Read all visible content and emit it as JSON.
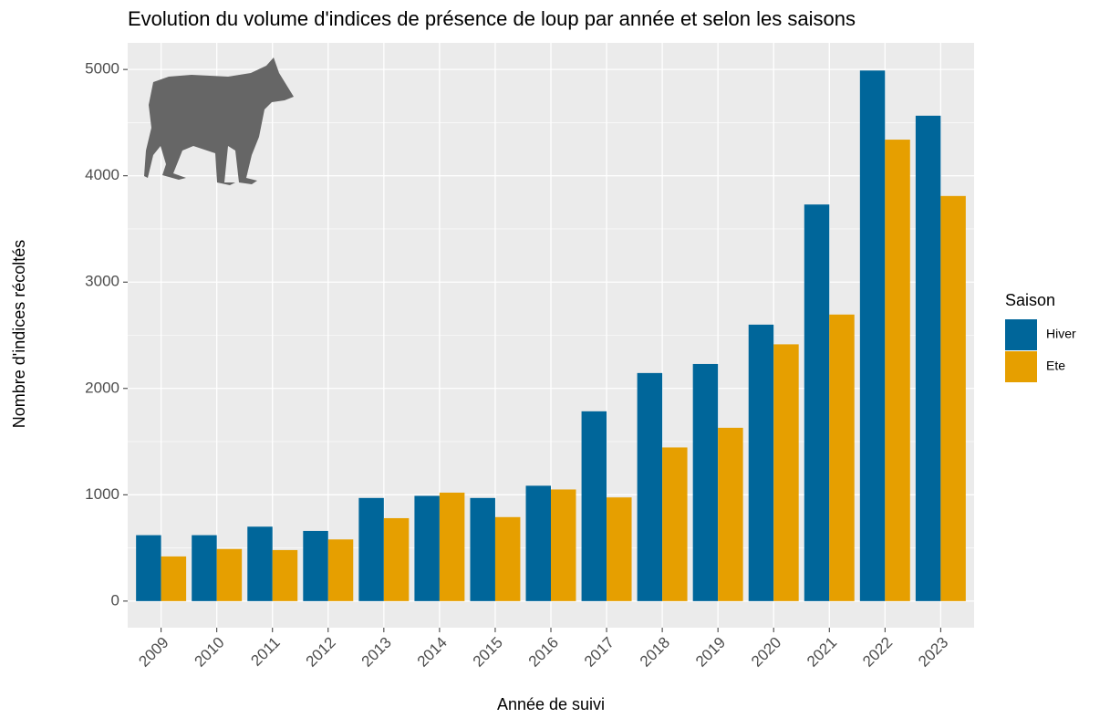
{
  "chart_data": {
    "type": "bar",
    "title": "Evolution du volume d'indices de présence de loup par année et selon les saisons",
    "x_label": "Année de suivi",
    "y_label": "Nombre d'indices récoltés",
    "categories": [
      "2009",
      "2010",
      "2011",
      "2012",
      "2013",
      "2014",
      "2015",
      "2016",
      "2017",
      "2018",
      "2019",
      "2020",
      "2021",
      "2022",
      "2023"
    ],
    "series": [
      {
        "name": "Hiver",
        "color": "#00669a",
        "values": [
          620,
          620,
          700,
          660,
          970,
          990,
          970,
          1085,
          1785,
          2145,
          2230,
          2600,
          3730,
          4990,
          4565
        ]
      },
      {
        "name": "Ete",
        "color": "#e69f00",
        "values": [
          420,
          490,
          480,
          580,
          780,
          1020,
          790,
          1050,
          975,
          1445,
          1630,
          2415,
          2695,
          4340,
          3810
        ]
      }
    ],
    "legend_title": "Saison",
    "legend_position": "right",
    "ylim": [
      -250,
      5250
    ],
    "yticks": [
      0,
      1000,
      2000,
      3000,
      4000,
      5000
    ],
    "grid": true
  }
}
